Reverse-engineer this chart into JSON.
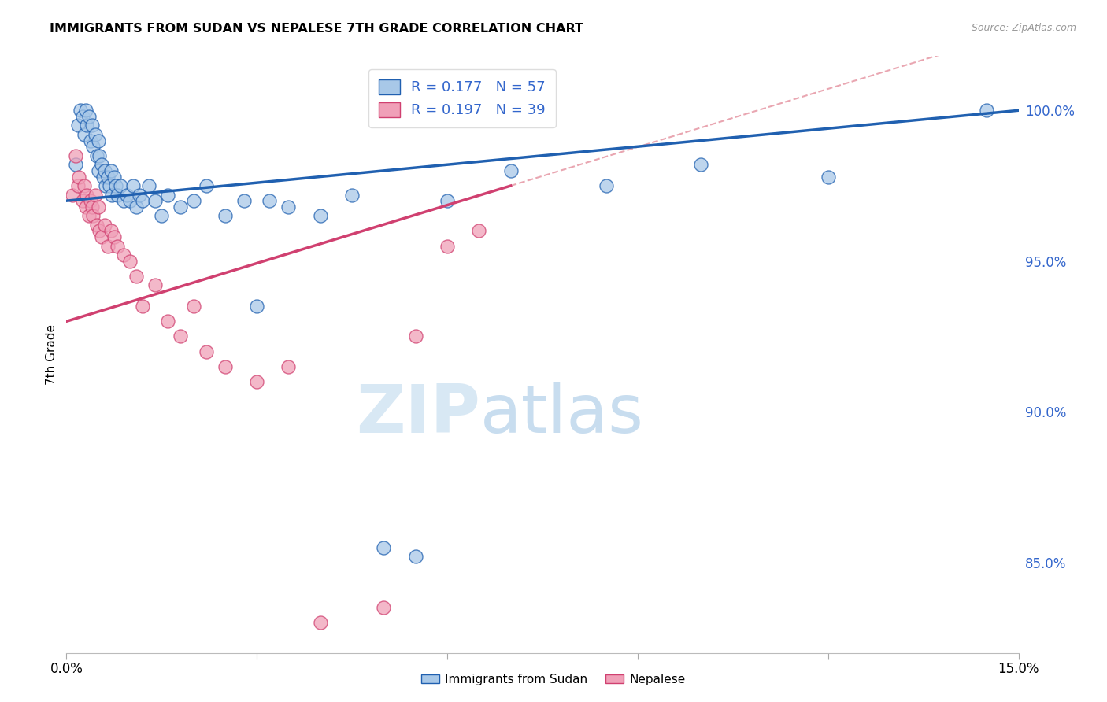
{
  "title": "IMMIGRANTS FROM SUDAN VS NEPALESE 7TH GRADE CORRELATION CHART",
  "source": "Source: ZipAtlas.com",
  "ylabel": "7th Grade",
  "right_yticks": [
    85.0,
    90.0,
    95.0,
    100.0
  ],
  "right_ytick_labels": [
    "85.0%",
    "90.0%",
    "95.0%",
    "100.0%"
  ],
  "xlim": [
    0.0,
    15.0
  ],
  "ylim": [
    82.0,
    101.8
  ],
  "blue_color": "#a8c8e8",
  "pink_color": "#f0a0b8",
  "blue_line_color": "#2060b0",
  "pink_line_color": "#d04070",
  "pink_dash_color": "#e08090",
  "r_blue": 0.177,
  "n_blue": 57,
  "r_pink": 0.197,
  "n_pink": 39,
  "blue_scatter_x": [
    0.15,
    0.18,
    0.22,
    0.25,
    0.28,
    0.3,
    0.32,
    0.35,
    0.38,
    0.4,
    0.42,
    0.45,
    0.48,
    0.5,
    0.5,
    0.52,
    0.55,
    0.58,
    0.6,
    0.62,
    0.65,
    0.68,
    0.7,
    0.72,
    0.75,
    0.78,
    0.8,
    0.85,
    0.9,
    0.95,
    1.0,
    1.05,
    1.1,
    1.15,
    1.2,
    1.3,
    1.4,
    1.5,
    1.6,
    1.8,
    2.0,
    2.2,
    2.5,
    2.8,
    3.0,
    3.2,
    3.5,
    4.0,
    4.5,
    5.0,
    5.5,
    6.0,
    7.0,
    8.5,
    10.0,
    12.0,
    14.5
  ],
  "blue_scatter_y": [
    98.2,
    99.5,
    100.0,
    99.8,
    99.2,
    100.0,
    99.5,
    99.8,
    99.0,
    99.5,
    98.8,
    99.2,
    98.5,
    98.0,
    99.0,
    98.5,
    98.2,
    97.8,
    98.0,
    97.5,
    97.8,
    97.5,
    98.0,
    97.2,
    97.8,
    97.5,
    97.2,
    97.5,
    97.0,
    97.2,
    97.0,
    97.5,
    96.8,
    97.2,
    97.0,
    97.5,
    97.0,
    96.5,
    97.2,
    96.8,
    97.0,
    97.5,
    96.5,
    97.0,
    93.5,
    97.0,
    96.8,
    96.5,
    97.2,
    85.5,
    85.2,
    97.0,
    98.0,
    97.5,
    98.2,
    97.8,
    100.0
  ],
  "pink_scatter_x": [
    0.1,
    0.15,
    0.18,
    0.2,
    0.25,
    0.28,
    0.3,
    0.32,
    0.35,
    0.38,
    0.4,
    0.42,
    0.45,
    0.48,
    0.5,
    0.52,
    0.55,
    0.6,
    0.65,
    0.7,
    0.75,
    0.8,
    0.9,
    1.0,
    1.1,
    1.2,
    1.4,
    1.6,
    1.8,
    2.0,
    2.2,
    2.5,
    3.0,
    3.5,
    4.0,
    5.0,
    5.5,
    6.0,
    6.5
  ],
  "pink_scatter_y": [
    97.2,
    98.5,
    97.5,
    97.8,
    97.0,
    97.5,
    96.8,
    97.2,
    96.5,
    97.0,
    96.8,
    96.5,
    97.2,
    96.2,
    96.8,
    96.0,
    95.8,
    96.2,
    95.5,
    96.0,
    95.8,
    95.5,
    95.2,
    95.0,
    94.5,
    93.5,
    94.2,
    93.0,
    92.5,
    93.5,
    92.0,
    91.5,
    91.0,
    91.5,
    83.0,
    83.5,
    92.5,
    95.5,
    96.0
  ],
  "watermark_zip": "ZIP",
  "watermark_atlas": "atlas",
  "background_color": "#ffffff",
  "grid_color": "#cccccc",
  "legend_text_color": "#3366cc",
  "axis_label_color": "#3366cc"
}
